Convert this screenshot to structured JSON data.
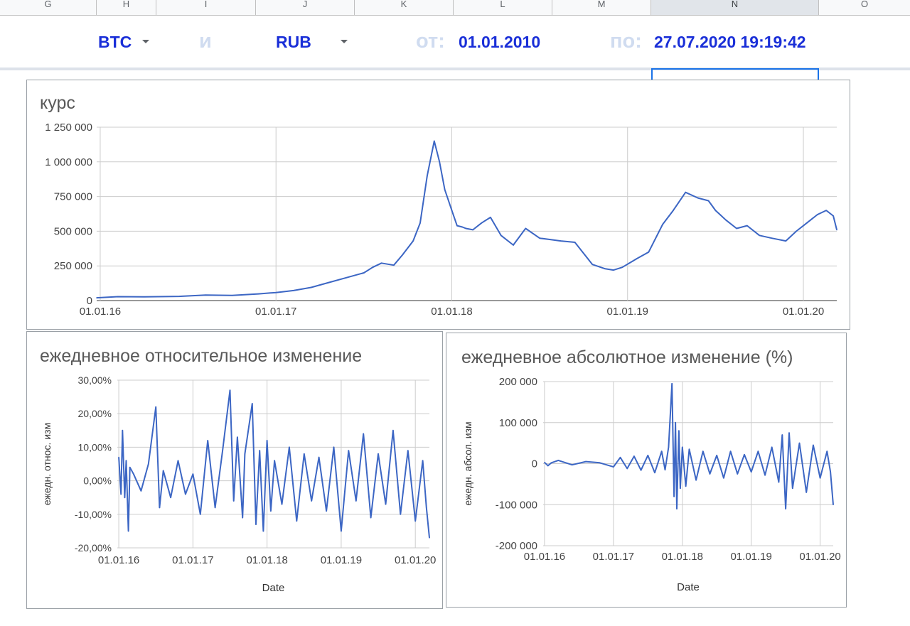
{
  "sheet": {
    "columns": [
      "G",
      "H",
      "I",
      "J",
      "K",
      "L",
      "M",
      "N",
      "O"
    ],
    "active_column": "N"
  },
  "controls": {
    "from_currency": "BTC",
    "connector": "и",
    "to_currency": "RUB",
    "from_label": "от:",
    "from_date": "01.01.2010",
    "to_label": "по:",
    "to_date": "27.07.2020 19:19:42"
  },
  "colors": {
    "series": "#3c66c4",
    "selector_text": "#1a2fd8",
    "label_text": "#d0dcf0",
    "grid": "#cccccc"
  },
  "chart_data": [
    {
      "id": "rate",
      "type": "line",
      "title": "курс",
      "xlabel": "",
      "ylabel": "",
      "ylim": [
        0,
        1250000
      ],
      "y_ticks": [
        "1 250 000",
        "1 000 000",
        "750 000",
        "500 000",
        "250 000",
        "0"
      ],
      "y_tick_values": [
        1250000,
        1000000,
        750000,
        500000,
        250000,
        0
      ],
      "x_ticks": [
        "01.01.16",
        "01.01.17",
        "01.01.18",
        "01.01.19",
        "01.01.20"
      ],
      "x_tick_values": [
        0,
        1,
        2,
        3,
        4
      ],
      "xlim": [
        -0.02,
        4.19
      ],
      "grid": true,
      "series": [
        {
          "x": [
            -0.02,
            0.1,
            0.25,
            0.45,
            0.6,
            0.75,
            0.9,
            1.0,
            1.1,
            1.2,
            1.3,
            1.4,
            1.5,
            1.55,
            1.6,
            1.67,
            1.72,
            1.78,
            1.82,
            1.86,
            1.9,
            1.93,
            1.96,
            2.0,
            2.03,
            2.06,
            2.08,
            2.12,
            2.17,
            2.22,
            2.28,
            2.35,
            2.42,
            2.5,
            2.56,
            2.62,
            2.7,
            2.8,
            2.87,
            2.92,
            2.97,
            3.05,
            3.12,
            3.2,
            3.26,
            3.33,
            3.4,
            3.46,
            3.5,
            3.56,
            3.62,
            3.68,
            3.75,
            3.82,
            3.9,
            3.96,
            4.02,
            4.08,
            4.13,
            4.17,
            4.19
          ],
          "y": [
            20000,
            28000,
            27000,
            30000,
            40000,
            37000,
            48000,
            58000,
            72000,
            95000,
            130000,
            165000,
            200000,
            240000,
            270000,
            255000,
            330000,
            430000,
            560000,
            900000,
            1150000,
            1000000,
            800000,
            650000,
            540000,
            530000,
            520000,
            510000,
            560000,
            600000,
            470000,
            400000,
            520000,
            450000,
            440000,
            430000,
            420000,
            260000,
            230000,
            220000,
            240000,
            300000,
            350000,
            550000,
            650000,
            780000,
            740000,
            720000,
            650000,
            580000,
            520000,
            540000,
            470000,
            450000,
            430000,
            500000,
            560000,
            620000,
            650000,
            610000,
            510000
          ]
        }
      ]
    },
    {
      "id": "relative",
      "type": "line",
      "title": "ежедневное относительное изменение",
      "xlabel": "Date",
      "ylabel": "ежедн. относ. изм",
      "ylim": [
        -20,
        30
      ],
      "y_ticks": [
        "30,00%",
        "20,00%",
        "10,00%",
        "0,00%",
        "-10,00%",
        "-20,00%"
      ],
      "y_tick_values": [
        30,
        20,
        10,
        0,
        -10,
        -20
      ],
      "x_ticks": [
        "01.01.16",
        "01.01.17",
        "01.01.18",
        "01.01.19",
        "01.01.20"
      ],
      "x_tick_values": [
        0,
        1,
        2,
        3,
        4
      ],
      "xlim": [
        -0.02,
        4.19
      ],
      "grid": true,
      "series": [
        {
          "x": [
            0.0,
            0.03,
            0.05,
            0.08,
            0.1,
            0.13,
            0.15,
            0.2,
            0.3,
            0.4,
            0.5,
            0.55,
            0.6,
            0.7,
            0.8,
            0.9,
            1.0,
            1.1,
            1.2,
            1.3,
            1.4,
            1.5,
            1.55,
            1.6,
            1.67,
            1.7,
            1.8,
            1.85,
            1.9,
            1.95,
            2.0,
            2.05,
            2.1,
            2.2,
            2.3,
            2.4,
            2.5,
            2.6,
            2.7,
            2.8,
            2.9,
            3.0,
            3.1,
            3.2,
            3.3,
            3.4,
            3.5,
            3.6,
            3.7,
            3.8,
            3.9,
            4.0,
            4.1,
            4.15,
            4.19
          ],
          "y": [
            7,
            -4,
            15,
            -5,
            6,
            -15,
            4,
            2,
            -3,
            5,
            22,
            -8,
            3,
            -5,
            6,
            -4,
            2,
            -10,
            12,
            -8,
            9,
            27,
            -6,
            13,
            -11,
            8,
            23,
            -13,
            9,
            -15,
            12,
            -9,
            6,
            -7,
            10,
            -12,
            8,
            -6,
            7,
            -9,
            10,
            -15,
            9,
            -6,
            14,
            -11,
            8,
            -7,
            15,
            -10,
            9,
            -12,
            6,
            -8,
            -17
          ]
        }
      ]
    },
    {
      "id": "absolute",
      "type": "line",
      "title": "ежедневное абсолютное изменение (%)",
      "xlabel": "Date",
      "ylabel": "ежедн. абсол. изм",
      "ylim": [
        -200000,
        200000
      ],
      "y_ticks": [
        "200 000",
        "100 000",
        "0",
        "-100 000",
        "-200 000"
      ],
      "y_tick_values": [
        200000,
        100000,
        0,
        -100000,
        -200000
      ],
      "x_ticks": [
        "01.01.16",
        "01.01.17",
        "01.01.18",
        "01.01.19",
        "01.01.20"
      ],
      "x_tick_values": [
        0,
        1,
        2,
        3,
        4
      ],
      "xlim": [
        -0.02,
        4.19
      ],
      "grid": true,
      "series": [
        {
          "x": [
            0.0,
            0.05,
            0.1,
            0.2,
            0.4,
            0.6,
            0.8,
            1.0,
            1.1,
            1.2,
            1.3,
            1.4,
            1.5,
            1.6,
            1.7,
            1.75,
            1.8,
            1.85,
            1.88,
            1.9,
            1.92,
            1.95,
            1.97,
            2.0,
            2.05,
            2.1,
            2.2,
            2.3,
            2.4,
            2.5,
            2.6,
            2.7,
            2.8,
            2.9,
            3.0,
            3.1,
            3.2,
            3.3,
            3.4,
            3.45,
            3.5,
            3.55,
            3.6,
            3.7,
            3.8,
            3.9,
            4.0,
            4.1,
            4.15,
            4.19
          ],
          "y": [
            3000,
            -5000,
            2000,
            8000,
            -3000,
            5000,
            2000,
            -8000,
            15000,
            -12000,
            18000,
            -16000,
            20000,
            -22000,
            30000,
            -15000,
            40000,
            195000,
            -80000,
            100000,
            -110000,
            80000,
            -60000,
            40000,
            -55000,
            35000,
            -40000,
            30000,
            -25000,
            20000,
            -35000,
            30000,
            -25000,
            22000,
            -20000,
            30000,
            -28000,
            40000,
            -45000,
            70000,
            -110000,
            75000,
            -60000,
            50000,
            -70000,
            45000,
            -35000,
            30000,
            -20000,
            -100000
          ]
        }
      ]
    }
  ]
}
